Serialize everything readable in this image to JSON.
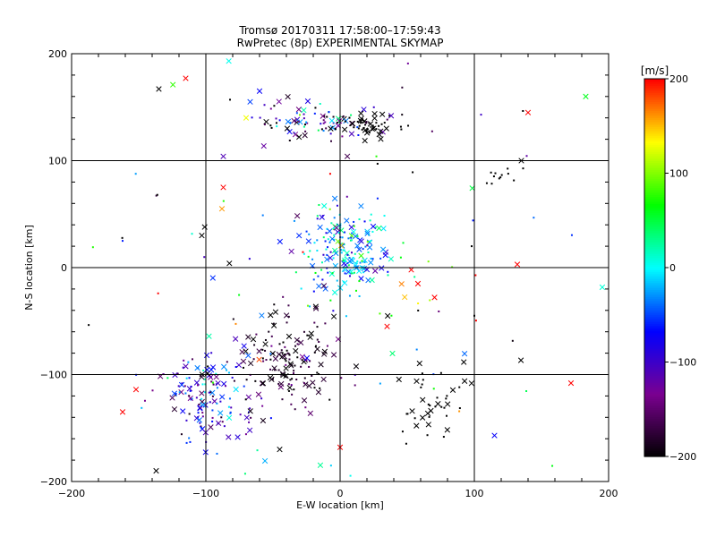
{
  "chart_data": {
    "type": "scatter",
    "title": "Tromsø 20170311 17:58:00–17:59:43",
    "subtitle": "RwPretec (8p) EXPERIMENTAL SKYMAP",
    "xlabel": "E-W location [km]",
    "ylabel": "N-S location [km]",
    "xlim": [
      -200,
      200
    ],
    "ylim": [
      -200,
      200
    ],
    "xticks": [
      -200,
      -100,
      0,
      100,
      200
    ],
    "yticks": [
      -200,
      -100,
      0,
      100,
      200
    ],
    "xtick_labels": [
      "−200",
      "−100",
      "0",
      "100",
      "200"
    ],
    "ytick_labels": [
      "−200",
      "−100",
      "0",
      "100",
      "200"
    ],
    "grid": "major grid lines at every 100 km",
    "markers": [
      "x",
      "dot"
    ],
    "colorbar": {
      "label": "[m/s]",
      "range": [
        -200,
        200
      ],
      "ticks": [
        200,
        100,
        0,
        -100,
        -200
      ],
      "tick_labels": [
        "200",
        "100",
        "0",
        "−100",
        "−200"
      ],
      "colormap": [
        "#000000",
        "#7a0090",
        "#0000ff",
        "#00ffff",
        "#00ff00",
        "#ffff00",
        "#ff0000"
      ]
    },
    "clusters": [
      {
        "center": [
          -15,
          138
        ],
        "spread": [
          28,
          9
        ],
        "count": 90,
        "velocity_mean": -120,
        "velocity_spread": 80
      },
      {
        "center": [
          20,
          132
        ],
        "spread": [
          10,
          5
        ],
        "count": 45,
        "velocity_mean": -200,
        "velocity_spread": 0
      },
      {
        "center": [
          5,
          15
        ],
        "spread": [
          18,
          20
        ],
        "count": 200,
        "velocity_mean": -20,
        "velocity_spread": 45
      },
      {
        "center": [
          -100,
          -120
        ],
        "spread": [
          18,
          22
        ],
        "count": 150,
        "velocity_mean": -80,
        "velocity_spread": 60
      },
      {
        "center": [
          -40,
          -90
        ],
        "spread": [
          18,
          25
        ],
        "count": 150,
        "velocity_mean": -185,
        "velocity_spread": 25
      },
      {
        "center": [
          70,
          -125
        ],
        "spread": [
          15,
          15
        ],
        "count": 40,
        "velocity_mean": -200,
        "velocity_spread": 0
      },
      {
        "center": [
          120,
          85
        ],
        "spread": [
          8,
          5
        ],
        "count": 12,
        "velocity_mean": -200,
        "velocity_spread": 0
      },
      {
        "center": [
          0,
          0
        ],
        "spread": [
          100,
          100
        ],
        "count": 90,
        "velocity_mean": 0,
        "velocity_spread": 150
      }
    ],
    "points": [
      {
        "x": -135,
        "y": 167,
        "v": -200,
        "m": "x"
      },
      {
        "x": -115,
        "y": 177,
        "v": 200,
        "m": "x"
      },
      {
        "x": 183,
        "y": 160,
        "v": 60,
        "m": "x"
      },
      {
        "x": 140,
        "y": 145,
        "v": 200,
        "m": "x"
      },
      {
        "x": 135,
        "y": 100,
        "v": -200,
        "m": "x"
      },
      {
        "x": 132,
        "y": 3,
        "v": 200,
        "m": "x"
      },
      {
        "x": 172,
        "y": -108,
        "v": 200,
        "m": "x"
      },
      {
        "x": 115,
        "y": -157,
        "v": -70,
        "m": "x"
      },
      {
        "x": -87,
        "y": 104,
        "v": -110,
        "m": "x"
      },
      {
        "x": -60,
        "y": 165,
        "v": -70,
        "m": "x"
      },
      {
        "x": -67,
        "y": 155,
        "v": -50,
        "m": "x"
      },
      {
        "x": -70,
        "y": 140,
        "v": 130,
        "m": "x"
      },
      {
        "x": -87,
        "y": 75,
        "v": 200,
        "m": "x"
      },
      {
        "x": -88,
        "y": 55,
        "v": 160,
        "m": "x"
      },
      {
        "x": -103,
        "y": 30,
        "v": -200,
        "m": "x"
      },
      {
        "x": -162,
        "y": 25,
        "v": -60,
        "m": "dot"
      },
      {
        "x": -162,
        "y": -135,
        "v": 200,
        "m": "x"
      },
      {
        "x": -152,
        "y": -114,
        "v": 200,
        "m": "x"
      },
      {
        "x": -137,
        "y": -190,
        "v": -200,
        "m": "x"
      },
      {
        "x": -82,
        "y": 157,
        "v": -200,
        "m": "dot"
      },
      {
        "x": 100,
        "y": -45,
        "v": -200,
        "m": "dot"
      },
      {
        "x": 98,
        "y": 20,
        "v": -200,
        "m": "dot"
      },
      {
        "x": 105,
        "y": 143,
        "v": -100,
        "m": "dot"
      },
      {
        "x": -45,
        "y": -170,
        "v": -200,
        "m": "x"
      },
      {
        "x": 0,
        "y": -168,
        "v": 200,
        "m": "x"
      },
      {
        "x": 58,
        "y": -15,
        "v": 200,
        "m": "x"
      },
      {
        "x": 35,
        "y": -55,
        "v": 200,
        "m": "x"
      },
      {
        "x": 53,
        "y": -2,
        "v": 200,
        "m": "x"
      }
    ]
  }
}
